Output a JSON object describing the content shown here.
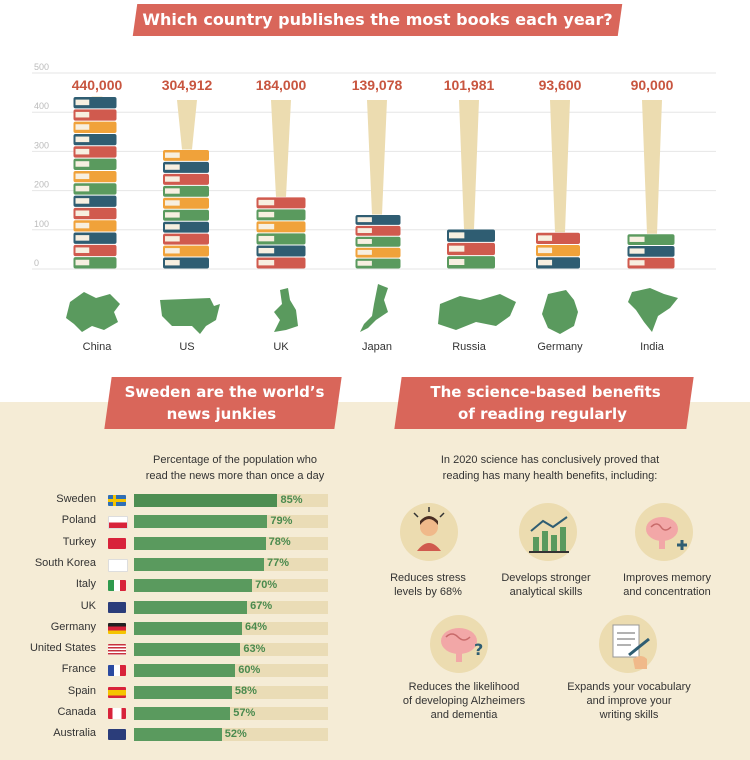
{
  "colors": {
    "banner": "#d9665a",
    "accent_text": "#c8553f",
    "green": "#5a9a5e",
    "teal": "#2f5d72",
    "orange": "#f0a23a",
    "red": "#d05a4e",
    "cream": "#f5ecd6",
    "spotlight": "#ecdcb0"
  },
  "books_section": {
    "title": "Which country publishes the most books each year?"
  },
  "news_section": {
    "title_line1": "Sweden are the world’s",
    "title_line2": "news junkies",
    "subtitle_line1": "Percentage of the population who",
    "subtitle_line2": "read the news more than once a day"
  },
  "science_section": {
    "title_line1": "The science-based benefits",
    "title_line2": "of reading regularly",
    "intro_line1": "In 2020 science has conclusively proved that",
    "intro_line2": "reading has many health benefits, including:",
    "benefits": [
      {
        "icon": "stressed-person-icon",
        "line1": "Reduces stress",
        "line2": "levels by 68%",
        "line3": ""
      },
      {
        "icon": "bar-chart-icon",
        "line1": "Develops stronger",
        "line2": "analytical skills",
        "line3": ""
      },
      {
        "icon": "brain-plus-icon",
        "line1": "Improves memory",
        "line2": "and concentration",
        "line3": ""
      },
      {
        "icon": "brain-question-icon",
        "line1": "Reduces the likelihood",
        "line2": "of developing Alzheimers",
        "line3": "and dementia"
      },
      {
        "icon": "writing-hand-icon",
        "line1": "Expands your vocabulary",
        "line2": "and improve your",
        "line3": "writing skills"
      }
    ]
  },
  "chart_data": [
    {
      "type": "bar",
      "title": "Which country publishes the most books each year?",
      "categories": [
        "China",
        "US",
        "UK",
        "Japan",
        "Russia",
        "Germany",
        "India"
      ],
      "values": [
        440000,
        304912,
        184000,
        139078,
        101981,
        93600,
        90000
      ],
      "value_labels": [
        "440,000",
        "304,912",
        "184,000",
        "139,078",
        "101,981",
        "93,600",
        "90,000"
      ],
      "y_ticks": [
        "0",
        "100",
        "200",
        "300",
        "400",
        "500"
      ],
      "ylim": [
        0,
        500
      ],
      "grid": true
    },
    {
      "type": "bar",
      "orientation": "horizontal",
      "title": "Percentage of the population who read the news more than once a day",
      "categories": [
        "Sweden",
        "Poland",
        "Turkey",
        "South Korea",
        "Italy",
        "UK",
        "Germany",
        "United States",
        "France",
        "Spain",
        "Canada",
        "Australia"
      ],
      "values": [
        85,
        79,
        78,
        77,
        70,
        67,
        64,
        63,
        60,
        58,
        57,
        52
      ],
      "value_labels": [
        "85%",
        "79%",
        "78%",
        "77%",
        "70%",
        "67%",
        "64%",
        "63%",
        "60%",
        "58%",
        "57%",
        "52%"
      ],
      "flag_icons": [
        "sweden-flag-icon",
        "poland-flag-icon",
        "turkey-flag-icon",
        "south-korea-flag-icon",
        "italy-flag-icon",
        "uk-flag-icon",
        "germany-flag-icon",
        "usa-flag-icon",
        "france-flag-icon",
        "spain-flag-icon",
        "canada-flag-icon",
        "australia-flag-icon"
      ],
      "xlim": [
        0,
        100
      ]
    }
  ]
}
